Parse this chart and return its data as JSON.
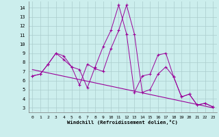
{
  "xlabel": "Windchill (Refroidissement éolien,°C)",
  "background_color": "#cceeed",
  "line_color": "#990099",
  "grid_color": "#aacccc",
  "xlim": [
    -0.5,
    23.5
  ],
  "ylim": [
    2.5,
    14.7
  ],
  "yticks": [
    3,
    4,
    5,
    6,
    7,
    8,
    9,
    10,
    11,
    12,
    13,
    14
  ],
  "xticks": [
    0,
    1,
    2,
    3,
    4,
    5,
    6,
    7,
    8,
    9,
    10,
    11,
    12,
    13,
    14,
    15,
    16,
    17,
    18,
    19,
    20,
    21,
    22,
    23
  ],
  "series1_x": [
    0,
    1,
    2,
    3,
    4,
    5,
    6,
    7,
    8,
    9,
    10,
    11,
    12,
    13,
    14,
    15,
    16,
    17,
    18,
    19,
    20,
    21,
    22,
    23
  ],
  "series1_y": [
    6.5,
    6.7,
    7.8,
    9.0,
    8.7,
    7.5,
    7.2,
    5.2,
    7.5,
    9.7,
    11.5,
    14.3,
    11.1,
    4.7,
    6.5,
    6.7,
    8.8,
    9.0,
    6.4,
    4.2,
    4.5,
    3.3,
    3.5,
    3.1
  ],
  "series2_x": [
    0,
    1,
    2,
    3,
    4,
    5,
    6,
    7,
    8,
    9,
    10,
    11,
    12,
    13,
    14,
    15,
    16,
    17,
    18,
    19,
    20,
    21,
    22,
    23
  ],
  "series2_y": [
    6.5,
    6.7,
    7.8,
    9.0,
    8.3,
    7.5,
    5.5,
    7.8,
    7.3,
    7.0,
    9.5,
    11.5,
    14.3,
    11.1,
    4.7,
    5.0,
    6.7,
    7.5,
    6.4,
    4.2,
    4.5,
    3.3,
    3.5,
    3.1
  ],
  "trend_x": [
    0,
    23
  ],
  "trend_y": [
    7.2,
    3.0
  ]
}
